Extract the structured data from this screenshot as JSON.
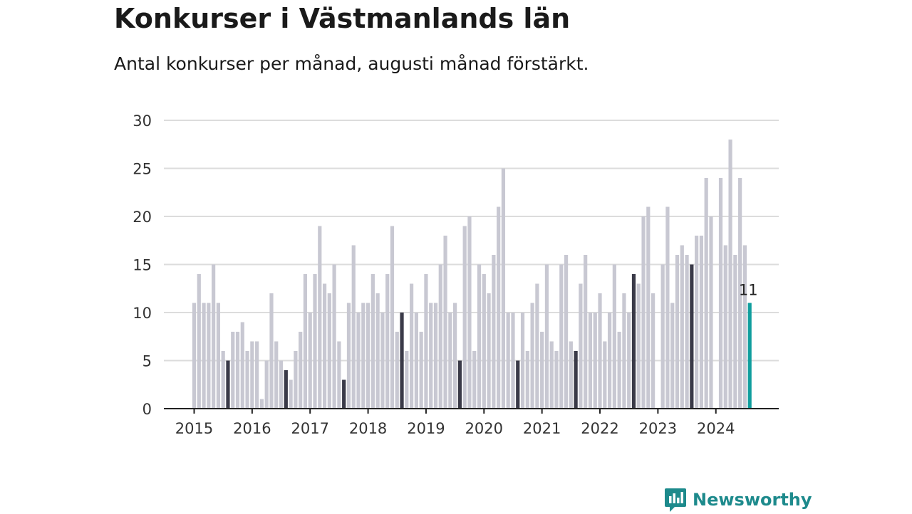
{
  "header": {
    "title": "Konkurser i Västmanlands län",
    "subtitle": "Antal konkurser per månad, augusti månad förstärkt."
  },
  "brand": {
    "name": "Newsworthy",
    "icon": "newsworthy-logo-icon",
    "color": "#1d8a8c"
  },
  "colors": {
    "bar": "#c8c8d2",
    "august": "#3a3a48",
    "latest": "#119e9e",
    "grid": "#dcdcdc",
    "axis": "#222222"
  },
  "chart_data": {
    "type": "bar",
    "title": "Konkurser i Västmanlands län",
    "subtitle": "Antal konkurser per månad, augusti månad förstärkt.",
    "xlabel": "",
    "ylabel": "",
    "ylim": [
      0,
      30
    ],
    "yticks": [
      0,
      5,
      10,
      15,
      20,
      25,
      30
    ],
    "xticks": [
      "2015",
      "2016",
      "2017",
      "2018",
      "2019",
      "2020",
      "2021",
      "2022",
      "2023",
      "2024"
    ],
    "grid": true,
    "start_month": "2015-01",
    "highlight": "augusti",
    "latest_label": "11",
    "series": [
      {
        "values": [
          11,
          14,
          11,
          11,
          15,
          11,
          6,
          5,
          8,
          8,
          9,
          6,
          7,
          7,
          1,
          5,
          12,
          7,
          5,
          4,
          3,
          6,
          8,
          14,
          10,
          14,
          19,
          13,
          12,
          15,
          7,
          3,
          11,
          17,
          10,
          11,
          11,
          14,
          12,
          10,
          14,
          19,
          8,
          10,
          6,
          13,
          10,
          8,
          14,
          11,
          11,
          15,
          18,
          10,
          11,
          5,
          19,
          20,
          6,
          15,
          14,
          12,
          16,
          21,
          25,
          10,
          10,
          5,
          10,
          6,
          11,
          13,
          8,
          15,
          7,
          6,
          15,
          16,
          7,
          6,
          13,
          16,
          10,
          10,
          12,
          7,
          10,
          15,
          8,
          12,
          10,
          14,
          13,
          20,
          21,
          12,
          0,
          15,
          21,
          11,
          16,
          17,
          16,
          15,
          18,
          18,
          24,
          20,
          0,
          24,
          17,
          28,
          16,
          24,
          17,
          11
        ]
      }
    ]
  }
}
